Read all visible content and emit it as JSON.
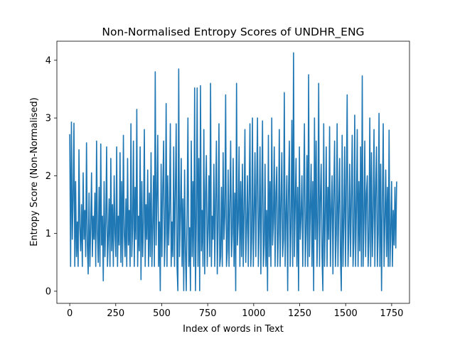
{
  "chart_data": {
    "type": "line",
    "title": "Non-Normalised Entropy Scores of UNDHR_ENG",
    "xlabel": "Index of words in Text",
    "ylabel": "Entropy Score (Non-Normalised)",
    "xlim": [
      -70,
      1847
    ],
    "ylim": [
      -0.21,
      4.33
    ],
    "xticks": [
      0,
      250,
      500,
      750,
      1000,
      1250,
      1500,
      1750
    ],
    "yticks": [
      0,
      1,
      2,
      3,
      4
    ],
    "grid": false,
    "legend": "none",
    "color": "#1f77b4",
    "series": [
      {
        "x_start": 0,
        "x_end": 1777,
        "values": [
          2.72,
          0.43,
          2.93,
          0.9,
          1.6,
          2.91,
          0.43,
          1.9,
          0.6,
          1.2,
          0.43,
          2.45,
          1.1,
          0.7,
          1.5,
          0.43,
          2.05,
          0.9,
          1.4,
          0.6,
          2.57,
          0.8,
          0.3,
          1.7,
          0.43,
          1.1,
          2.05,
          0.6,
          1.3,
          0.9,
          1.7,
          0.43,
          2.6,
          1.0,
          0.5,
          1.8,
          0.43,
          2.55,
          0.8,
          1.3,
          0.18,
          1.9,
          0.6,
          1.2,
          2.5,
          0.43,
          0.9,
          1.6,
          0.43,
          2.3,
          0.7,
          1.5,
          0.43,
          2.0,
          1.0,
          0.6,
          2.5,
          0.43,
          1.3,
          0.8,
          2.4,
          0.5,
          1.9,
          0.43,
          2.7,
          1.0,
          0.6,
          1.6,
          0.43,
          2.3,
          0.8,
          1.4,
          0.43,
          2.9,
          0.6,
          1.1,
          2.6,
          0.43,
          1.8,
          0.9,
          3.15,
          0.43,
          1.3,
          0.7,
          2.5,
          0.2,
          1.9,
          0.6,
          1.2,
          2.8,
          0.43,
          1.5,
          0.9,
          2.1,
          0.43,
          1.7,
          0.6,
          2.4,
          0.43,
          1.1,
          2.0,
          0.43,
          3.8,
          0.8,
          1.6,
          2.7,
          0.43,
          1.2,
          0.01,
          2.2,
          0.6,
          1.8,
          2.6,
          0.43,
          1.0,
          3.25,
          0.43,
          2.0,
          0.8,
          1.4,
          2.9,
          0.43,
          1.2,
          0.6,
          2.5,
          0.43,
          1.7,
          2.9,
          0.43,
          0.01,
          3.85,
          0.6,
          1.3,
          2.3,
          0.43,
          1.6,
          0.01,
          2.1,
          0.7,
          0.01,
          1.4,
          3.0,
          0.43,
          1.1,
          0.01,
          2.6,
          0.6,
          1.9,
          0.43,
          3.52,
          0.01,
          1.2,
          3.52,
          0.43,
          2.3,
          0.01,
          3.56,
          0.7,
          1.4,
          0.43,
          2.8,
          0.3,
          1.7,
          2.35,
          0.43,
          1.0,
          2.0,
          0.6,
          3.6,
          0.43,
          1.3,
          0.9,
          2.2,
          0.43,
          1.6,
          2.6,
          0.3,
          1.1,
          2.9,
          0.43,
          0.6,
          1.8,
          0.43,
          2.4,
          0.9,
          1.3,
          3.4,
          0.43,
          0.7,
          2.1,
          0.43,
          1.5,
          2.6,
          0.6,
          1.0,
          2.3,
          0.43,
          1.7,
          0.01,
          3.6,
          0.8,
          1.2,
          2.5,
          0.43,
          1.9,
          0.6,
          2.2,
          0.43,
          1.4,
          2.8,
          0.5,
          1.1,
          2.0,
          0.43,
          1.6,
          2.9,
          0.43,
          0.9,
          3.0,
          0.43,
          1.3,
          2.4,
          0.6,
          1.8,
          3.0,
          0.43,
          1.1,
          2.5,
          0.3,
          1.6,
          2.95,
          0.43,
          0.8,
          2.2,
          0.43,
          1.4,
          0.01,
          2.7,
          0.6,
          1.9,
          0.43,
          3.0,
          0.8,
          1.2,
          2.5,
          0.43,
          1.7,
          2.15,
          0.43,
          1.0,
          2.8,
          0.43,
          1.5,
          2.4,
          0.6,
          0.9,
          3.44,
          0.43,
          1.3,
          2.0,
          0.01,
          1.7,
          2.6,
          0.43,
          1.1,
          2.96,
          0.43,
          4.13,
          0.6,
          1.5,
          2.3,
          0.43,
          1.8,
          0.01,
          2.5,
          0.9,
          1.3,
          2.0,
          0.43,
          1.6,
          2.9,
          0.43,
          1.0,
          2.35,
          0.43,
          3.75,
          0.6,
          1.4,
          2.2,
          0.43,
          1.9,
          0.01,
          3.0,
          0.9,
          2.6,
          0.43,
          1.2,
          3.6,
          0.43,
          1.6,
          2.2,
          0.6,
          0.01,
          2.9,
          0.43,
          1.3,
          2.5,
          0.43,
          1.8,
          0.9,
          2.85,
          0.43,
          1.4,
          2.0,
          0.3,
          1.7,
          2.6,
          0.43,
          1.0,
          2.9,
          0.43,
          1.5,
          2.3,
          0.6,
          0.01,
          2.7,
          0.43,
          1.2,
          2.5,
          0.43,
          1.8,
          3.4,
          0.43,
          1.0,
          2.2,
          0.6,
          1.6,
          2.7,
          0.43,
          0.9,
          3.05,
          0.43,
          1.4,
          2.8,
          0.43,
          1.9,
          0.7,
          2.5,
          0.43,
          3.73,
          0.43,
          1.2,
          2.6,
          0.6,
          1.7,
          2.0,
          0.43,
          0.9,
          3.0,
          0.43,
          2.4,
          0.6,
          1.3,
          2.8,
          0.43,
          1.8,
          2.5,
          0.43,
          1.0,
          3.08,
          0.43,
          2.2,
          0.01,
          1.5,
          2.9,
          0.43,
          1.2,
          2.1,
          0.6,
          1.8,
          0.43,
          2.79,
          0.43,
          1.0,
          1.9,
          0.43,
          1.4,
          0.8,
          1.8,
          0.75,
          1.9
        ]
      }
    ]
  }
}
